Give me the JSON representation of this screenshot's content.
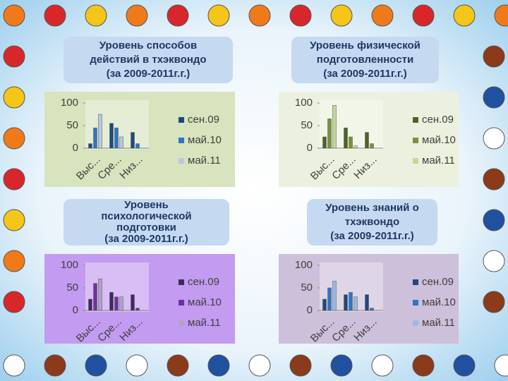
{
  "chart_data": [
    {
      "type": "bar",
      "title": [
        "Уровень способов",
        "действий в тхэквондо",
        "(за 2009-2011г.г.)"
      ],
      "categories": [
        "Выс...",
        "Сре...",
        "Низ..."
      ],
      "series": [
        {
          "name": "сен.09",
          "color": "#1f497d",
          "values": [
            10,
            55,
            35
          ]
        },
        {
          "name": "май.10",
          "color": "#2e75c6",
          "values": [
            45,
            45,
            10
          ]
        },
        {
          "name": "май.11",
          "color": "#b8c8e0",
          "values": [
            75,
            25,
            0
          ]
        }
      ],
      "ylim": [
        0,
        100
      ],
      "yticks": [
        0,
        50,
        100
      ],
      "background": "#d7e4bd"
    },
    {
      "type": "bar",
      "title": [
        "Уровень физической",
        "подготовленности",
        "(за 2009-2011г.г.)"
      ],
      "categories": [
        "Выс...",
        "Сре...",
        "Низ..."
      ],
      "series": [
        {
          "name": "сен.09",
          "color": "#4f6228",
          "values": [
            25,
            45,
            35
          ]
        },
        {
          "name": "май.10",
          "color": "#77933c",
          "values": [
            65,
            25,
            10
          ]
        },
        {
          "name": "май.11",
          "color": "#c4d79b",
          "values": [
            95,
            5,
            0
          ]
        }
      ],
      "ylim": [
        0,
        100
      ],
      "yticks": [
        0,
        50,
        100
      ],
      "background": "#ebf1de"
    },
    {
      "type": "bar",
      "title": [
        "Уровень",
        "психологической",
        "подготовки",
        "(за 2009-2011г.г.)"
      ],
      "categories": [
        "Выс...",
        "Сре...",
        "Низ..."
      ],
      "series": [
        {
          "name": "сен.09",
          "color": "#3f2a5e",
          "values": [
            25,
            40,
            35
          ]
        },
        {
          "name": "май.10",
          "color": "#7030a0",
          "values": [
            60,
            30,
            5
          ]
        },
        {
          "name": "май.11",
          "color": "#b3a2c7",
          "values": [
            70,
            30,
            0
          ]
        }
      ],
      "ylim": [
        0,
        100
      ],
      "yticks": [
        0,
        50,
        100
      ],
      "background": "#c39bf0"
    },
    {
      "type": "bar",
      "title": [
        "Уровень  знаний о",
        "тхэквондо",
        "(за 2009-2011г.г.)"
      ],
      "categories": [
        "Выс...",
        "Сре...",
        "Низ..."
      ],
      "series": [
        {
          "name": "сен.09",
          "color": "#1f497d",
          "values": [
            25,
            35,
            35
          ]
        },
        {
          "name": "май.10",
          "color": "#2e75c6",
          "values": [
            50,
            40,
            5
          ]
        },
        {
          "name": "май.11",
          "color": "#9db9de",
          "values": [
            65,
            30,
            0
          ]
        }
      ],
      "ylim": [
        0,
        100
      ],
      "yticks": [
        0,
        50,
        100
      ],
      "background": "#ccc0da"
    }
  ]
}
